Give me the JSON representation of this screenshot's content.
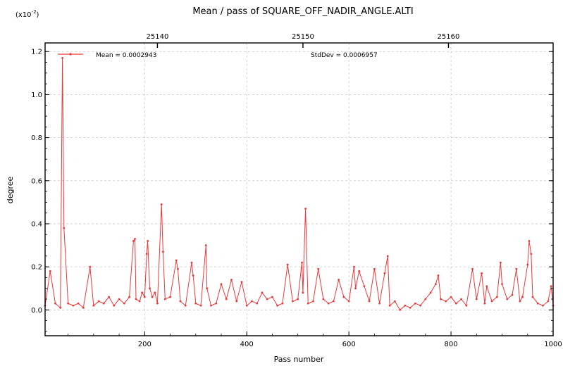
{
  "chart_data": {
    "type": "line",
    "title": "Mean / pass of SQUARE_OFF_NADIR_ANGLE.ALTI",
    "xlabel": "Pass number",
    "ylabel": "degree",
    "y_multiplier_label": "(x10",
    "y_multiplier_exp": "-2",
    "y_multiplier_close": ")",
    "xlim": [
      5,
      1000
    ],
    "ylim": [
      -0.12,
      1.24
    ],
    "x_ticks": [
      200,
      400,
      600,
      800,
      1000
    ],
    "y_ticks": [
      0.0,
      0.2,
      0.4,
      0.6,
      0.8,
      1.0,
      1.2
    ],
    "top_axis": {
      "ticks": [
        "25140",
        "25150",
        "25160"
      ],
      "tick_x": [
        225,
        510,
        795
      ]
    },
    "grid": true,
    "color": "#e8393b",
    "stats": {
      "mean": "Mean = 0.0002943",
      "stddev": "StdDev = 0.0006957"
    },
    "series": [
      {
        "values_x": [
          5,
          15,
          25,
          35,
          39,
          42,
          50,
          60,
          70,
          80,
          93,
          100,
          110,
          120,
          130,
          140,
          150,
          160,
          170,
          178,
          181,
          183,
          190,
          195,
          200,
          204,
          206,
          210,
          215,
          220,
          225,
          233,
          236,
          240,
          250,
          262,
          265,
          270,
          280,
          292,
          295,
          300,
          310,
          320,
          322,
          330,
          340,
          350,
          360,
          370,
          380,
          390,
          400,
          410,
          420,
          430,
          440,
          450,
          460,
          470,
          480,
          490,
          500,
          508,
          510,
          515,
          520,
          530,
          540,
          550,
          560,
          570,
          580,
          590,
          600,
          610,
          613,
          620,
          630,
          640,
          650,
          660,
          670,
          676,
          680,
          690,
          700,
          710,
          720,
          730,
          740,
          750,
          760,
          770,
          775,
          780,
          790,
          800,
          810,
          820,
          830,
          842,
          850,
          860,
          866,
          870,
          880,
          890,
          897,
          900,
          910,
          920,
          928,
          935,
          940,
          950,
          953,
          957,
          960,
          970,
          980,
          990,
          996,
          1000
        ],
        "values_y": [
          0.02,
          0.18,
          0.03,
          0.01,
          1.17,
          0.38,
          0.03,
          0.02,
          0.03,
          0.01,
          0.2,
          0.02,
          0.04,
          0.03,
          0.06,
          0.02,
          0.05,
          0.03,
          0.06,
          0.32,
          0.33,
          0.05,
          0.04,
          0.08,
          0.06,
          0.26,
          0.32,
          0.1,
          0.06,
          0.08,
          0.03,
          0.49,
          0.27,
          0.05,
          0.06,
          0.23,
          0.19,
          0.04,
          0.02,
          0.22,
          0.16,
          0.03,
          0.02,
          0.3,
          0.1,
          0.02,
          0.03,
          0.12,
          0.05,
          0.14,
          0.04,
          0.13,
          0.02,
          0.04,
          0.03,
          0.08,
          0.05,
          0.06,
          0.02,
          0.03,
          0.21,
          0.04,
          0.05,
          0.22,
          0.08,
          0.47,
          0.03,
          0.04,
          0.19,
          0.05,
          0.03,
          0.04,
          0.14,
          0.06,
          0.04,
          0.2,
          0.1,
          0.18,
          0.11,
          0.04,
          0.19,
          0.03,
          0.17,
          0.25,
          0.02,
          0.04,
          0.0,
          0.02,
          0.01,
          0.03,
          0.02,
          0.05,
          0.08,
          0.12,
          0.16,
          0.05,
          0.04,
          0.06,
          0.03,
          0.05,
          0.02,
          0.19,
          0.05,
          0.17,
          0.03,
          0.11,
          0.04,
          0.06,
          0.22,
          0.12,
          0.05,
          0.07,
          0.19,
          0.04,
          0.06,
          0.21,
          0.32,
          0.26,
          0.06,
          0.03,
          0.02,
          0.04,
          0.11,
          0.02
        ]
      }
    ]
  }
}
